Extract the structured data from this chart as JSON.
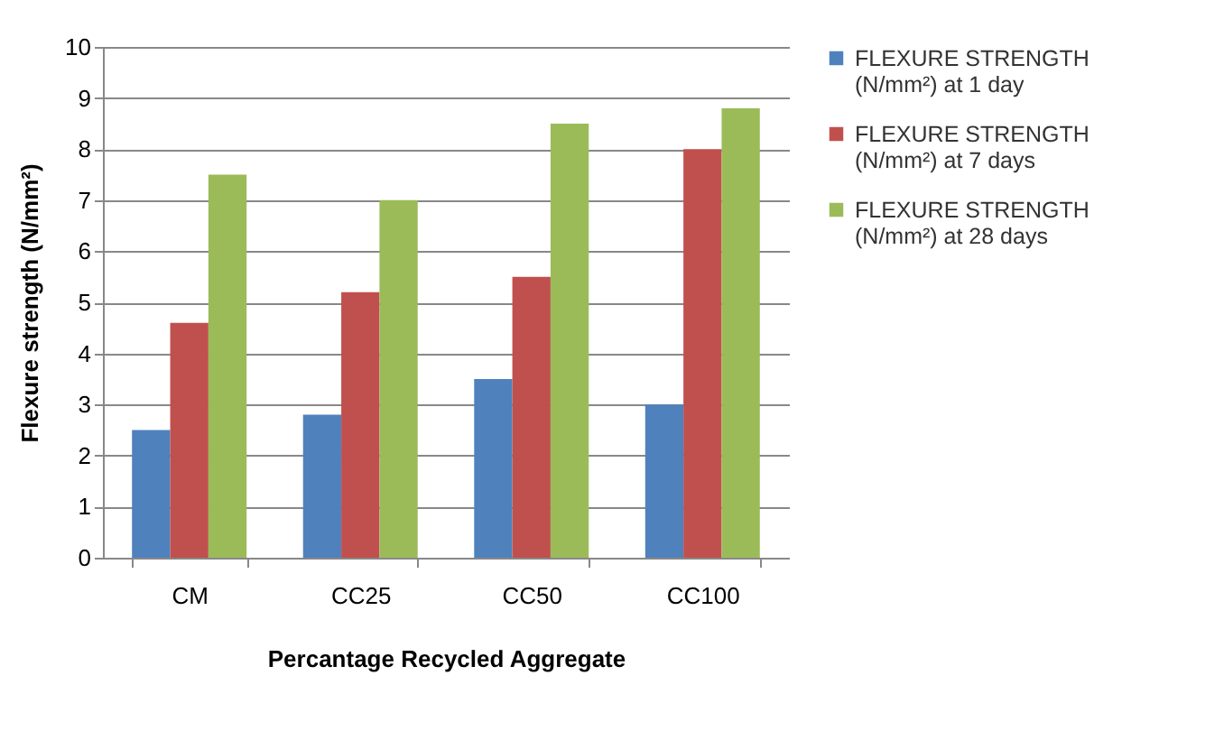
{
  "chart_data": {
    "type": "bar",
    "xlabel": "Percantage Recycled Aggregate",
    "ylabel": "Flexure strength (N/mm²)",
    "categories": [
      "CM",
      "CC25",
      "CC50",
      "CC100"
    ],
    "series": [
      {
        "name": "FLEXURE STRENGTH (N/mm²) at 1 day",
        "color": "#4f81bd",
        "values": [
          2.5,
          2.8,
          3.5,
          3.0
        ]
      },
      {
        "name": "FLEXURE STRENGTH (N/mm²) at 7 days",
        "color": "#c0504d",
        "values": [
          4.6,
          5.2,
          5.5,
          8.0
        ]
      },
      {
        "name": "FLEXURE STRENGTH (N/mm²) at 28 days",
        "color": "#9bbb59",
        "values": [
          7.5,
          7.0,
          8.5,
          8.8
        ]
      }
    ],
    "ylim": [
      0,
      10
    ],
    "yticks": [
      0,
      1,
      2,
      3,
      4,
      5,
      6,
      7,
      8,
      9,
      10
    ],
    "grid": "y",
    "legend": "right"
  }
}
